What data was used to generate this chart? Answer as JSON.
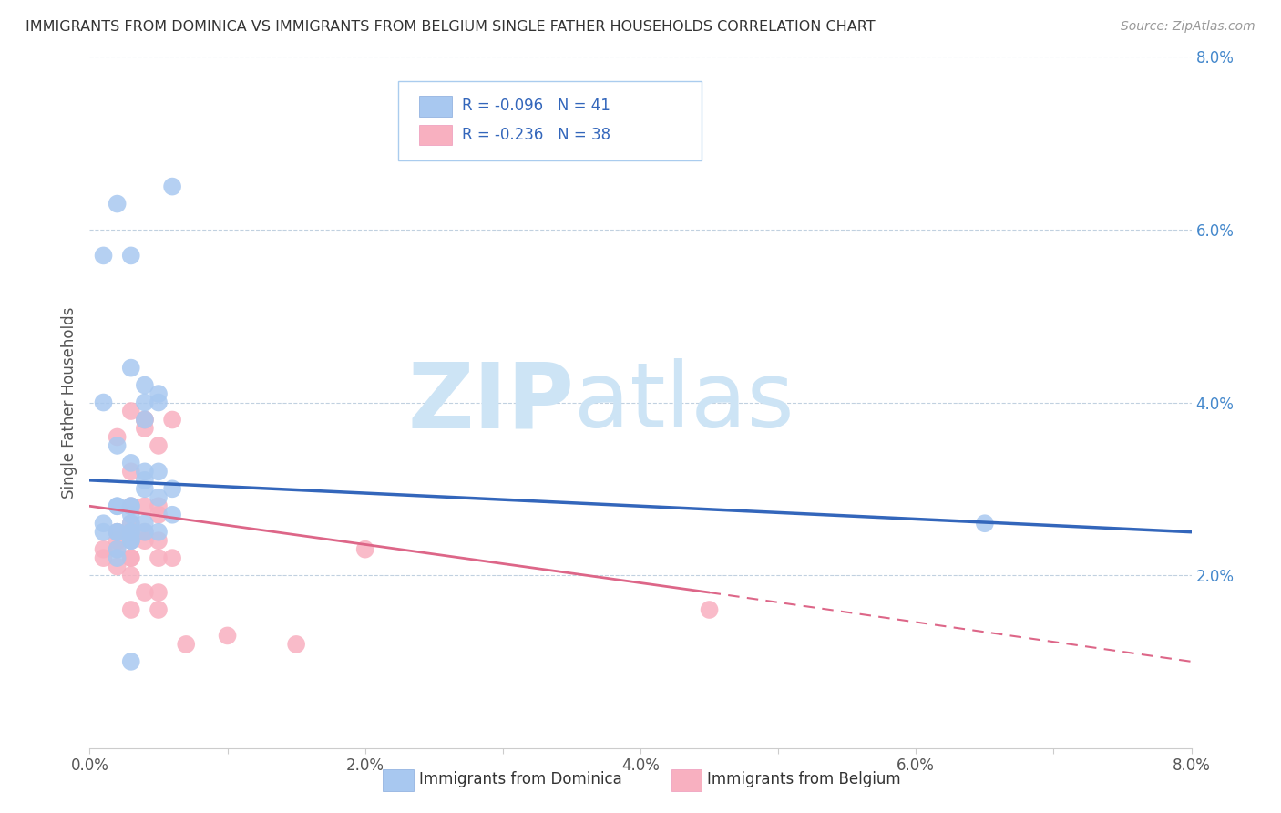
{
  "title": "IMMIGRANTS FROM DOMINICA VS IMMIGRANTS FROM BELGIUM SINGLE FATHER HOUSEHOLDS CORRELATION CHART",
  "source": "Source: ZipAtlas.com",
  "ylabel": "Single Father Households",
  "xlim": [
    0.0,
    0.08
  ],
  "ylim": [
    0.0,
    0.08
  ],
  "xticks": [
    0.0,
    0.01,
    0.02,
    0.03,
    0.04,
    0.05,
    0.06,
    0.07,
    0.08
  ],
  "xticklabels": [
    "0.0%",
    "",
    "2.0%",
    "",
    "4.0%",
    "",
    "6.0%",
    "",
    "8.0%"
  ],
  "yticks": [
    0.02,
    0.04,
    0.06,
    0.08
  ],
  "yticklabels": [
    "2.0%",
    "4.0%",
    "6.0%",
    "8.0%"
  ],
  "legend_r1": "R = -0.096",
  "legend_n1": "N = 41",
  "legend_r2": "R = -0.236",
  "legend_n2": "N = 38",
  "color_dominica": "#a8c8f0",
  "color_belgium": "#f8b0c0",
  "line_color_dominica": "#3366bb",
  "line_color_belgium": "#dd6688",
  "watermark_zip": "ZIP",
  "watermark_atlas": "atlas",
  "watermark_color": "#cde4f5",
  "legend_label1": "Immigrants from Dominica",
  "legend_label2": "Immigrants from Belgium",
  "dominica_x": [
    0.001,
    0.002,
    0.001,
    0.002,
    0.003,
    0.003,
    0.004,
    0.003,
    0.005,
    0.004,
    0.003,
    0.004,
    0.005,
    0.006,
    0.004,
    0.005,
    0.002,
    0.003,
    0.004,
    0.003,
    0.002,
    0.003,
    0.001,
    0.002,
    0.003,
    0.003,
    0.004,
    0.005,
    0.006,
    0.003,
    0.004,
    0.005,
    0.002,
    0.006,
    0.004,
    0.003,
    0.002,
    0.001,
    0.002,
    0.065,
    0.003
  ],
  "dominica_y": [
    0.026,
    0.028,
    0.057,
    0.025,
    0.027,
    0.024,
    0.03,
    0.025,
    0.04,
    0.038,
    0.044,
    0.042,
    0.041,
    0.065,
    0.032,
    0.029,
    0.028,
    0.026,
    0.04,
    0.025,
    0.063,
    0.057,
    0.04,
    0.035,
    0.033,
    0.028,
    0.031,
    0.032,
    0.03,
    0.028,
    0.026,
    0.025,
    0.025,
    0.027,
    0.025,
    0.024,
    0.023,
    0.025,
    0.022,
    0.026,
    0.01
  ],
  "belgium_x": [
    0.001,
    0.002,
    0.001,
    0.003,
    0.002,
    0.003,
    0.004,
    0.003,
    0.005,
    0.004,
    0.003,
    0.004,
    0.005,
    0.006,
    0.004,
    0.005,
    0.002,
    0.003,
    0.002,
    0.003,
    0.002,
    0.003,
    0.004,
    0.005,
    0.003,
    0.003,
    0.004,
    0.005,
    0.006,
    0.003,
    0.004,
    0.005,
    0.02,
    0.005,
    0.045,
    0.007,
    0.01,
    0.015
  ],
  "belgium_y": [
    0.022,
    0.024,
    0.023,
    0.026,
    0.025,
    0.024,
    0.038,
    0.028,
    0.035,
    0.037,
    0.039,
    0.038,
    0.028,
    0.038,
    0.025,
    0.024,
    0.023,
    0.022,
    0.021,
    0.02,
    0.036,
    0.032,
    0.028,
    0.027,
    0.016,
    0.025,
    0.024,
    0.022,
    0.022,
    0.022,
    0.018,
    0.016,
    0.023,
    0.018,
    0.016,
    0.012,
    0.013,
    0.012
  ],
  "line_dom_x0": 0.0,
  "line_dom_y0": 0.031,
  "line_dom_x1": 0.08,
  "line_dom_y1": 0.025,
  "line_bel_x0": 0.0,
  "line_bel_y0": 0.028,
  "line_bel_x1": 0.045,
  "line_bel_y1": 0.018,
  "line_bel_dash_x0": 0.045,
  "line_bel_dash_y0": 0.018,
  "line_bel_dash_x1": 0.08,
  "line_bel_dash_y1": 0.01
}
